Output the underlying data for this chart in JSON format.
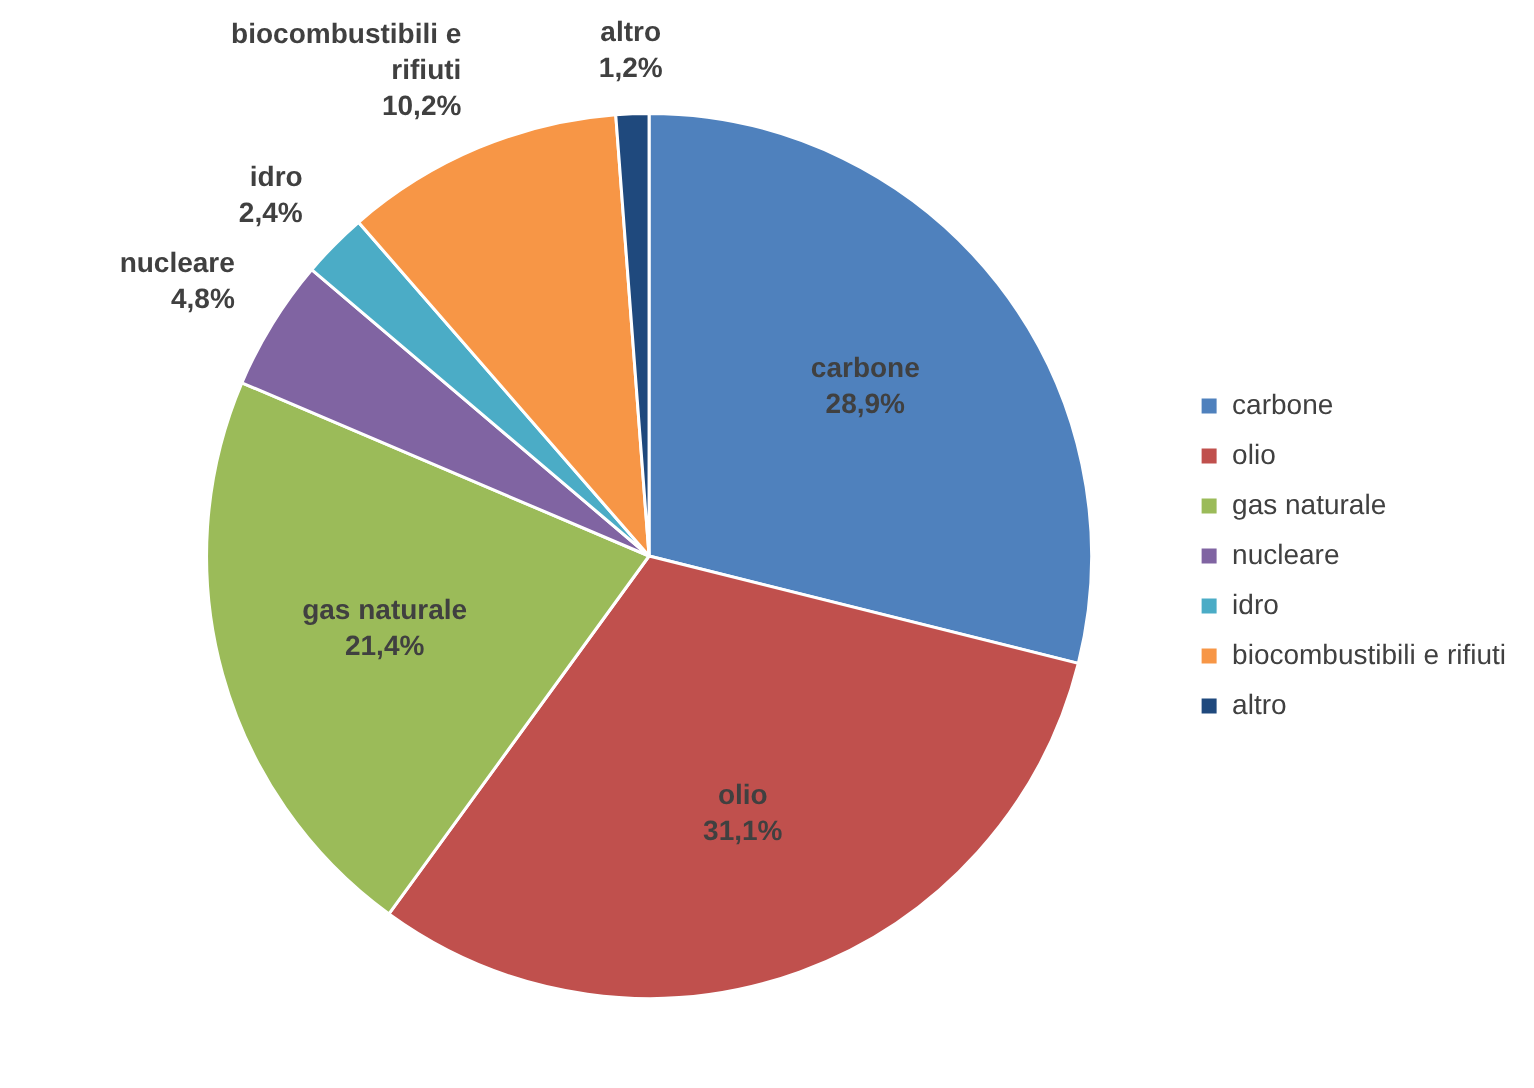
{
  "chart_data": {
    "type": "pie",
    "categories": [
      "carbone",
      "olio",
      "gas naturale",
      "nucleare",
      "idro",
      "biocombustibili e rifiuti",
      "altro"
    ],
    "values": [
      28.9,
      31.1,
      21.4,
      4.8,
      2.4,
      10.2,
      1.2
    ],
    "colors": [
      "#4f81bd",
      "#c0504d",
      "#9bbb59",
      "#8064a2",
      "#4bacc6",
      "#f79646",
      "#1f497d"
    ],
    "value_labels": [
      "28,9%",
      "31,1%",
      "21,4%",
      "4,8%",
      "2,4%",
      "10,2%",
      "1,2%"
    ],
    "legend": "right"
  }
}
